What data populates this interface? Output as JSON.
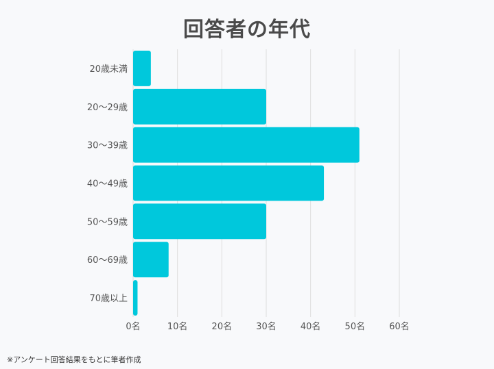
{
  "chart_data": {
    "type": "bar",
    "orientation": "horizontal",
    "title": "回答者の年代",
    "categories": [
      "20歳未満",
      "20〜29歳",
      "30〜39歳",
      "40〜49歳",
      "50〜59歳",
      "60〜69歳",
      "70歳以上"
    ],
    "values": [
      4,
      30,
      51,
      43,
      30,
      8,
      1
    ],
    "xlim": [
      0,
      60
    ],
    "xticks": [
      0,
      10,
      20,
      30,
      40,
      50,
      60
    ],
    "xtick_labels": [
      "0名",
      "10名",
      "20名",
      "30名",
      "40名",
      "50名",
      "60名"
    ],
    "grid": true,
    "bar_color": "#00c8dc",
    "grid_color": "#dddddd"
  },
  "footnote": "※アンケート回答結果をもとに筆者作成"
}
